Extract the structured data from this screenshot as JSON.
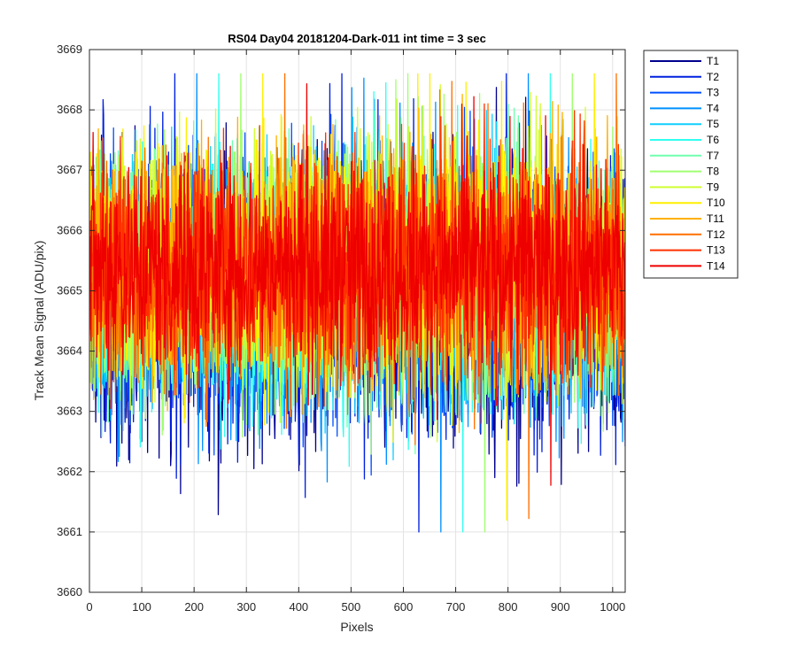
{
  "chart_data": {
    "type": "line",
    "title": "RS04 Day04 20181204-Dark-011 int time = 3 sec",
    "xlabel": "Pixels",
    "ylabel": "Track Mean Signal (ADU/pix)",
    "xlim": [
      0,
      1024
    ],
    "ylim": [
      3660,
      3669
    ],
    "xticks": [
      0,
      100,
      200,
      300,
      400,
      500,
      600,
      700,
      800,
      900,
      1000
    ],
    "yticks": [
      3660,
      3661,
      3662,
      3663,
      3664,
      3665,
      3666,
      3667,
      3668,
      3669
    ],
    "grid": true,
    "legend_position": "outside-right",
    "n_points": 1024,
    "series": [
      {
        "name": "T1",
        "color": "#00008F",
        "mean": 3664.8,
        "spread": 2.2
      },
      {
        "name": "T2",
        "color": "#0020DF",
        "mean": 3664.9,
        "spread": 2.1
      },
      {
        "name": "T3",
        "color": "#0050FF",
        "mean": 3665.0,
        "spread": 2.0
      },
      {
        "name": "T4",
        "color": "#0090FF",
        "mean": 3665.0,
        "spread": 2.0
      },
      {
        "name": "T5",
        "color": "#10CFFF",
        "mean": 3665.1,
        "spread": 1.9
      },
      {
        "name": "T6",
        "color": "#30FFEF",
        "mean": 3665.1,
        "spread": 1.9
      },
      {
        "name": "T7",
        "color": "#70FFAF",
        "mean": 3665.2,
        "spread": 1.9
      },
      {
        "name": "T8",
        "color": "#A0FF70",
        "mean": 3665.3,
        "spread": 1.9
      },
      {
        "name": "T9",
        "color": "#CFFF30",
        "mean": 3665.4,
        "spread": 1.9
      },
      {
        "name": "T10",
        "color": "#FFEF00",
        "mean": 3665.5,
        "spread": 1.9
      },
      {
        "name": "T11",
        "color": "#FFB000",
        "mean": 3665.4,
        "spread": 1.8
      },
      {
        "name": "T12",
        "color": "#FF7000",
        "mean": 3665.3,
        "spread": 1.8
      },
      {
        "name": "T13",
        "color": "#FF3000",
        "mean": 3665.4,
        "spread": 1.7
      },
      {
        "name": "T14",
        "color": "#EF0000",
        "mean": 3665.4,
        "spread": 1.6
      }
    ]
  }
}
